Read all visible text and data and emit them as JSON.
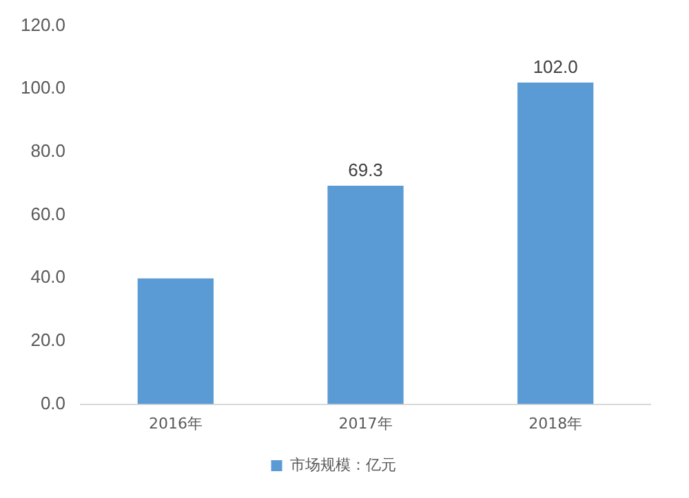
{
  "chart_data": {
    "type": "bar",
    "categories": [
      "2016年",
      "2017年",
      "2018年"
    ],
    "series": [
      {
        "name": "市场规模：亿元",
        "color": "#5b9bd5",
        "values": [
          39.9,
          69.3,
          102.0
        ],
        "value_labels": [
          null,
          "69.3",
          "102.0"
        ]
      }
    ],
    "ylim": [
      0,
      120
    ],
    "yticks": [
      {
        "value": 0,
        "label": "0.0"
      },
      {
        "value": 20,
        "label": "20.0"
      },
      {
        "value": 40,
        "label": "40.0"
      },
      {
        "value": 60,
        "label": "60.0"
      },
      {
        "value": 80,
        "label": "80.0"
      },
      {
        "value": 100,
        "label": "100.0"
      },
      {
        "value": 120,
        "label": "120.0"
      }
    ],
    "grid": false,
    "legend": "bottom"
  }
}
